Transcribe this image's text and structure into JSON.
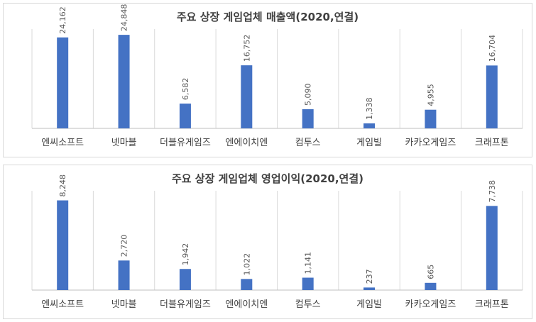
{
  "chart_data": [
    {
      "type": "bar",
      "title": "주요 상장 게임업체 매출액(2020,연결)",
      "categories": [
        "엔씨소프트",
        "넷마블",
        "더블유게임즈",
        "엔에이치엔",
        "컴투스",
        "게임빌",
        "카카오게임즈",
        "크래프톤"
      ],
      "values": [
        24162,
        24848,
        6582,
        16752,
        5090,
        1338,
        4955,
        16704
      ],
      "value_labels": [
        "24,162",
        "24,848",
        "6,582",
        "16,752",
        "5,090",
        "1,338",
        "4,955",
        "16,704"
      ],
      "ylim": [
        0,
        26000
      ],
      "color": "#4472c4",
      "grid": "vertical category separators"
    },
    {
      "type": "bar",
      "title": "주요 상장 게임업체 영업이익(2020,연결)",
      "categories": [
        "엔씨소프트",
        "넷마블",
        "더블유게임즈",
        "엔에이치엔",
        "컴투스",
        "게임빌",
        "카카오게임즈",
        "크래프톤"
      ],
      "values": [
        8248,
        2720,
        1942,
        1022,
        1141,
        237,
        665,
        7738
      ],
      "value_labels": [
        "8,248",
        "2,720",
        "1,942",
        "1,022",
        "1,141",
        "237",
        "665",
        "7,738"
      ],
      "ylim": [
        0,
        9000
      ],
      "color": "#4472c4",
      "grid": "vertical category separators"
    }
  ]
}
